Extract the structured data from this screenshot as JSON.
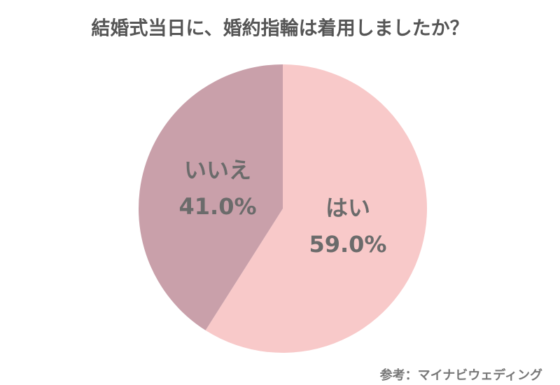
{
  "chart_data": {
    "type": "pie",
    "title": "結婚式当日に、婚約指輪は着用しましたか？",
    "categories": [
      "はい",
      "いいえ"
    ],
    "values": [
      59.0,
      41.0
    ],
    "value_labels": [
      "59.0%",
      "41.0%"
    ],
    "colors": [
      "#f8c9c9",
      "#c9a0aa"
    ],
    "source": "参考：マイナビウェディング"
  }
}
